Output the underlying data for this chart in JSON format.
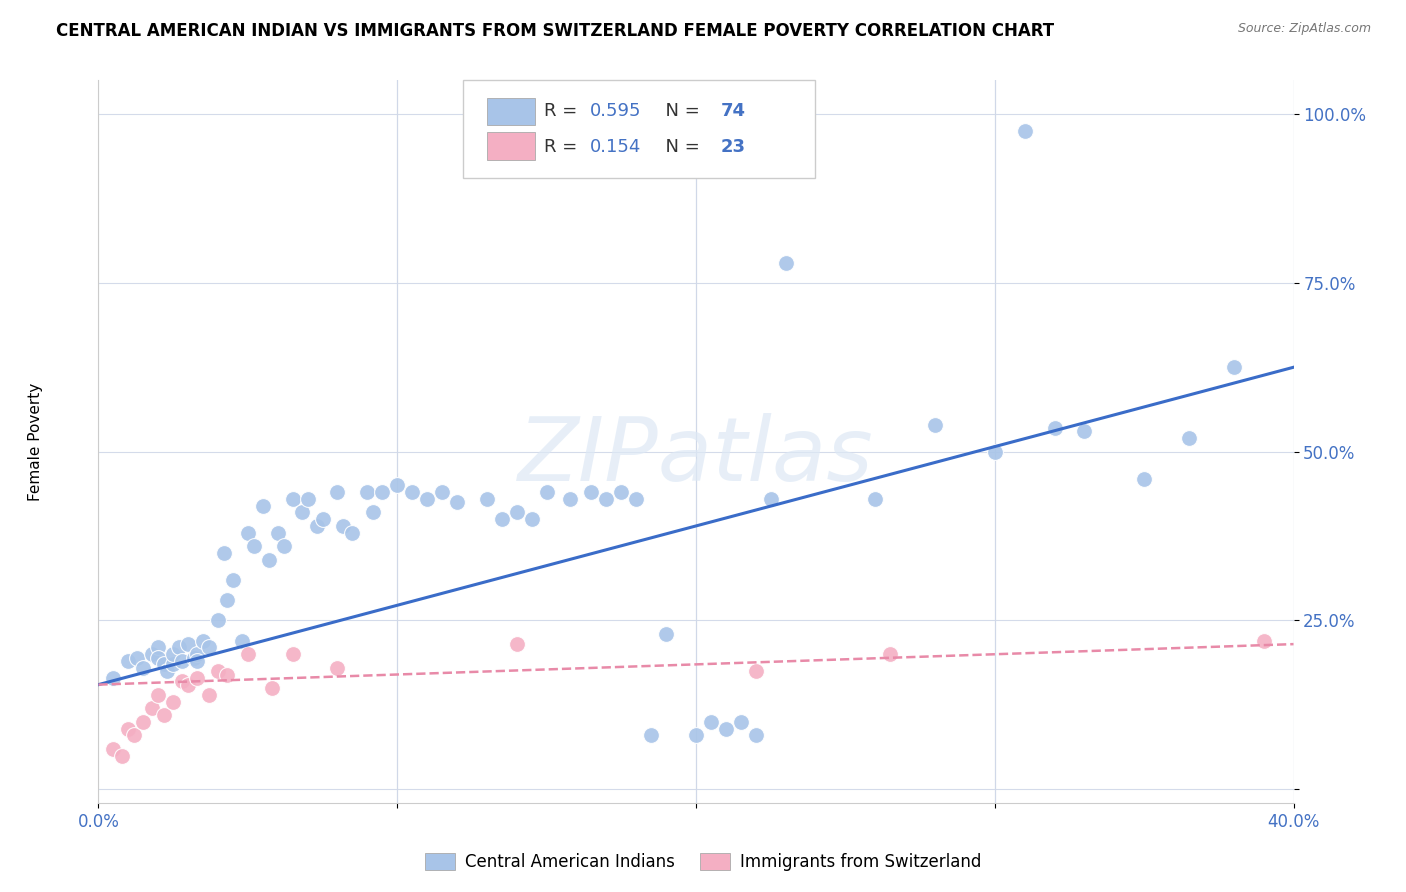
{
  "title": "CENTRAL AMERICAN INDIAN VS IMMIGRANTS FROM SWITZERLAND FEMALE POVERTY CORRELATION CHART",
  "source": "Source: ZipAtlas.com",
  "ylabel": "Female Poverty",
  "ytick_vals": [
    0.0,
    0.25,
    0.5,
    0.75,
    1.0
  ],
  "ytick_labels": [
    "",
    "25.0%",
    "50.0%",
    "75.0%",
    "100.0%"
  ],
  "xlim": [
    0.0,
    0.4
  ],
  "ylim": [
    -0.02,
    1.05
  ],
  "xtick_vals": [
    0.0,
    0.1,
    0.2,
    0.3,
    0.4
  ],
  "xtick_labels": [
    "0.0%",
    "",
    "",
    "",
    "40.0%"
  ],
  "blue_R": "0.595",
  "blue_N": "74",
  "pink_R": "0.154",
  "pink_N": "23",
  "blue_color": "#a8c4e8",
  "pink_color": "#f4afc3",
  "blue_line_color": "#3a6cc8",
  "pink_line_color": "#e88aa8",
  "legend1_label": "Central American Indians",
  "legend2_label": "Immigrants from Switzerland",
  "watermark_text": "ZIPatlas",
  "tick_color": "#4472c4",
  "grid_color": "#d0d8e8",
  "blue_scatter_x": [
    0.005,
    0.01,
    0.013,
    0.015,
    0.018,
    0.02,
    0.02,
    0.022,
    0.023,
    0.025,
    0.025,
    0.027,
    0.028,
    0.03,
    0.032,
    0.033,
    0.033,
    0.035,
    0.037,
    0.04,
    0.042,
    0.043,
    0.045,
    0.048,
    0.05,
    0.052,
    0.055,
    0.057,
    0.06,
    0.062,
    0.065,
    0.068,
    0.07,
    0.073,
    0.075,
    0.08,
    0.082,
    0.085,
    0.09,
    0.092,
    0.095,
    0.1,
    0.105,
    0.11,
    0.115,
    0.12,
    0.13,
    0.135,
    0.14,
    0.145,
    0.15,
    0.158,
    0.165,
    0.17,
    0.175,
    0.18,
    0.185,
    0.19,
    0.2,
    0.205,
    0.21,
    0.215,
    0.22,
    0.225,
    0.23,
    0.26,
    0.28,
    0.3,
    0.31,
    0.32,
    0.33,
    0.35,
    0.365,
    0.38
  ],
  "blue_scatter_y": [
    0.165,
    0.19,
    0.195,
    0.18,
    0.2,
    0.21,
    0.195,
    0.185,
    0.175,
    0.185,
    0.2,
    0.21,
    0.19,
    0.215,
    0.195,
    0.2,
    0.19,
    0.22,
    0.21,
    0.25,
    0.35,
    0.28,
    0.31,
    0.22,
    0.38,
    0.36,
    0.42,
    0.34,
    0.38,
    0.36,
    0.43,
    0.41,
    0.43,
    0.39,
    0.4,
    0.44,
    0.39,
    0.38,
    0.44,
    0.41,
    0.44,
    0.45,
    0.44,
    0.43,
    0.44,
    0.425,
    0.43,
    0.4,
    0.41,
    0.4,
    0.44,
    0.43,
    0.44,
    0.43,
    0.44,
    0.43,
    0.08,
    0.23,
    0.08,
    0.1,
    0.09,
    0.1,
    0.08,
    0.43,
    0.78,
    0.43,
    0.54,
    0.5,
    0.975,
    0.535,
    0.53,
    0.46,
    0.52,
    0.625
  ],
  "pink_scatter_x": [
    0.005,
    0.008,
    0.01,
    0.012,
    0.015,
    0.018,
    0.02,
    0.022,
    0.025,
    0.028,
    0.03,
    0.033,
    0.037,
    0.04,
    0.043,
    0.05,
    0.058,
    0.065,
    0.08,
    0.14,
    0.22,
    0.265,
    0.39
  ],
  "pink_scatter_y": [
    0.06,
    0.05,
    0.09,
    0.08,
    0.1,
    0.12,
    0.14,
    0.11,
    0.13,
    0.16,
    0.155,
    0.165,
    0.14,
    0.175,
    0.17,
    0.2,
    0.15,
    0.2,
    0.18,
    0.215,
    0.175,
    0.2,
    0.22
  ],
  "blue_trend_x": [
    0.0,
    0.4
  ],
  "blue_trend_y": [
    0.155,
    0.625
  ],
  "pink_trend_x": [
    0.0,
    0.4
  ],
  "pink_trend_y": [
    0.155,
    0.215
  ]
}
